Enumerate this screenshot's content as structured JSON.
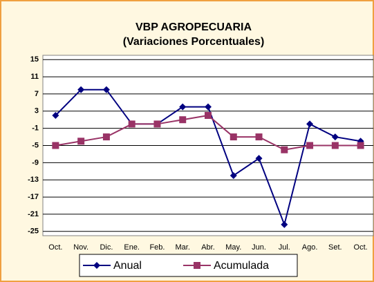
{
  "chart_data": {
    "type": "line",
    "title": "VBP AGROPECUARIA",
    "subtitle": "(Variaciones Porcentuales)",
    "categories": [
      "Oct.",
      "Nov.",
      "Dic.",
      "Ene.",
      "Feb.",
      "Mar.",
      "Abr.",
      "May.",
      "Jun.",
      "Jul.",
      "Ago.",
      "Set.",
      "Oct."
    ],
    "series": [
      {
        "name": "Anual",
        "color": "#000080",
        "marker": "diamond",
        "values": [
          2,
          8,
          8,
          0,
          0,
          4,
          4,
          -12,
          -8,
          -23.4,
          0,
          -3,
          -4
        ]
      },
      {
        "name": "Acumulada",
        "color": "#993366",
        "marker": "square",
        "values": [
          -5,
          -4,
          -3,
          0,
          0,
          1,
          2,
          -3,
          -3,
          -6,
          -5,
          -5,
          -5
        ]
      }
    ],
    "ylim": [
      -26,
      16
    ],
    "yticks": [
      15,
      11,
      7,
      3,
      -1,
      -5,
      -9,
      -13,
      -17,
      -21,
      -25
    ],
    "grid": true,
    "legend": "bottom"
  }
}
